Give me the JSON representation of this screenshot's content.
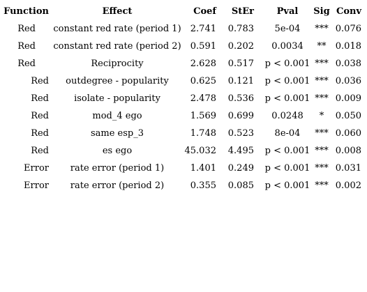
{
  "table": {
    "header": [
      "Function",
      "Effect",
      "Coef",
      "StEr",
      "Pval",
      "Sig",
      "Conv"
    ],
    "rows": [
      [
        "Red",
        "constant red rate (period 1)",
        "2.741",
        "0.783",
        "5e-04",
        "***",
        "0.076"
      ],
      [
        "Red",
        "constant red rate (period 2)",
        "0.591",
        "0.202",
        "0.0034",
        "**",
        "0.018"
      ],
      [
        "Red",
        "Reciprocity",
        "2.628",
        "0.517",
        "p < 0.001",
        "***",
        "0.038"
      ],
      [
        "Red",
        "outdegree - popularity",
        "0.625",
        "0.121",
        "p < 0.001",
        "***",
        "0.036"
      ],
      [
        "Red",
        "isolate - popularity",
        "2.478",
        "0.536",
        "p < 0.001",
        "***",
        "0.009"
      ],
      [
        "Red",
        "mod_4 ego",
        "1.569",
        "0.699",
        "0.0248",
        "*",
        "0.050"
      ],
      [
        "Red",
        "same esp_3",
        "1.748",
        "0.523",
        "8e-04",
        "***",
        "0.060"
      ],
      [
        "Red",
        "es ego",
        "45.032",
        "4.495",
        "p < 0.001",
        "***",
        "0.008"
      ],
      [
        "Error",
        "rate error (period 1)",
        "1.401",
        "0.249",
        "p < 0.001",
        "***",
        "0.031"
      ],
      [
        "Error",
        "rate error (period 2)",
        "0.355",
        "0.085",
        "p < 0.001",
        "***",
        "0.002"
      ]
    ]
  }
}
